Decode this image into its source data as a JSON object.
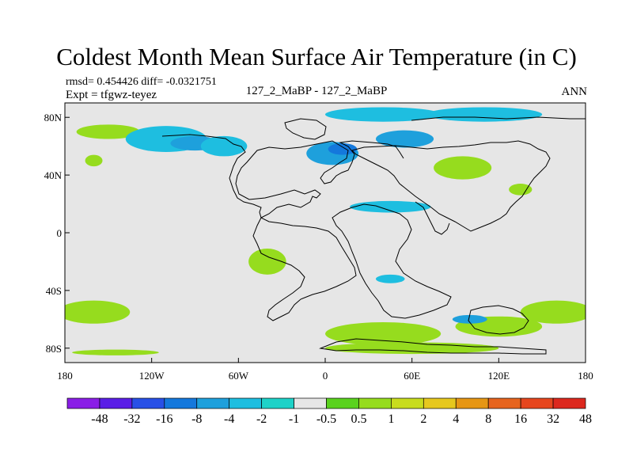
{
  "title": "Coldest Month Mean Surface Air Temperature (in C)",
  "stats": {
    "rmsd_line": "rmsd= 0.454426 diff= -0.0321751",
    "expt_line": "Expt = tfgwz-teyez",
    "comparison": "127_2_MaBP - 127_2_MaBP",
    "season": "ANN"
  },
  "axes": {
    "x_ticks": [
      {
        "value": -180,
        "label": "180"
      },
      {
        "value": -120,
        "label": "120W"
      },
      {
        "value": -60,
        "label": "60W"
      },
      {
        "value": 0,
        "label": "0"
      },
      {
        "value": 60,
        "label": "60E"
      },
      {
        "value": 120,
        "label": "120E"
      },
      {
        "value": 180,
        "label": "180"
      }
    ],
    "y_ticks": [
      {
        "value": 80,
        "label": "80N"
      },
      {
        "value": 40,
        "label": "40N"
      },
      {
        "value": 0,
        "label": "0"
      },
      {
        "value": -40,
        "label": "40S"
      },
      {
        "value": -80,
        "label": "80S"
      }
    ],
    "xlim": [
      -180,
      180
    ],
    "ylim": [
      -90,
      90
    ]
  },
  "colorbar": {
    "colors": [
      "#8a1ee6",
      "#5a1ee6",
      "#2850e6",
      "#1478dc",
      "#1ea0dc",
      "#1ebee0",
      "#1ed2c8",
      "#e6e6e6",
      "#5ad21e",
      "#96dc1e",
      "#c8dc1e",
      "#e6c81e",
      "#e69614",
      "#e6641e",
      "#e6461e",
      "#dc281e"
    ],
    "labels": [
      "-48",
      "-32",
      "-16",
      "-8",
      "-4",
      "-2",
      "-1",
      "-0.5",
      "0.5",
      "1",
      "2",
      "4",
      "8",
      "16",
      "32",
      "48"
    ]
  },
  "chart_data": {
    "type": "heatmap",
    "title": "Coldest Month Mean Surface Air Temperature (in C)",
    "units": "C",
    "levels": [
      -48,
      -32,
      -16,
      -8,
      -4,
      -2,
      -1,
      -0.5,
      0.5,
      1,
      2,
      4,
      8,
      16,
      32,
      48
    ],
    "background_value_range": [
      -0.5,
      0.5
    ],
    "xlim": [
      -180,
      180
    ],
    "ylim": [
      -90,
      90
    ],
    "anomaly_regions": [
      {
        "name": "north-pacific-arctic-green",
        "lon": -150,
        "lat": 70,
        "rx": 22,
        "ry": 5,
        "value": 1
      },
      {
        "name": "north-america-cyan-west",
        "lon": -110,
        "lat": 65,
        "rx": 28,
        "ry": 9,
        "value": -1
      },
      {
        "name": "north-america-cyan-core",
        "lon": -90,
        "lat": 62,
        "rx": 17,
        "ry": 5,
        "value": -2
      },
      {
        "name": "north-america-cyan-east",
        "lon": -70,
        "lat": 60,
        "rx": 16,
        "ry": 7,
        "value": -1
      },
      {
        "name": "north-pacific-green",
        "lon": -160,
        "lat": 50,
        "rx": 6,
        "ry": 4,
        "value": 1
      },
      {
        "name": "arctic-ridge-cyan",
        "lon": 40,
        "lat": 82,
        "rx": 40,
        "ry": 5,
        "value": -1
      },
      {
        "name": "arctic-east-cyan",
        "lon": 110,
        "lat": 82,
        "rx": 40,
        "ry": 5,
        "value": -1
      },
      {
        "name": "europe-cyan",
        "lon": 5,
        "lat": 55,
        "rx": 18,
        "ry": 8,
        "value": -2
      },
      {
        "name": "europe-deep-cyan",
        "lon": 12,
        "lat": 58,
        "rx": 10,
        "ry": 4,
        "value": -4
      },
      {
        "name": "siberia-cyan",
        "lon": 55,
        "lat": 65,
        "rx": 20,
        "ry": 6,
        "value": -2
      },
      {
        "name": "central-asia-green",
        "lon": 95,
        "lat": 45,
        "rx": 20,
        "ry": 8,
        "value": 1
      },
      {
        "name": "east-asia-green",
        "lon": 135,
        "lat": 30,
        "rx": 8,
        "ry": 4,
        "value": 1
      },
      {
        "name": "tethys-cyan",
        "lon": 45,
        "lat": 18,
        "rx": 28,
        "ry": 4,
        "value": -1
      },
      {
        "name": "south-atlantic-green",
        "lon": -40,
        "lat": -20,
        "rx": 13,
        "ry": 9,
        "value": 1
      },
      {
        "name": "south-atlantic-cyan",
        "lon": 45,
        "lat": -32,
        "rx": 10,
        "ry": 3,
        "value": -1
      },
      {
        "name": "southern-ocean-green-west",
        "lon": -160,
        "lat": -55,
        "rx": 25,
        "ry": 8,
        "value": 1
      },
      {
        "name": "southern-ocean-green-east",
        "lon": 160,
        "lat": -55,
        "rx": 25,
        "ry": 8,
        "value": 1
      },
      {
        "name": "antarctic-coast-green-a",
        "lon": 40,
        "lat": -70,
        "rx": 40,
        "ry": 8,
        "value": 1
      },
      {
        "name": "antarctic-coast-green-b",
        "lon": 120,
        "lat": -65,
        "rx": 30,
        "ry": 7,
        "value": 1
      },
      {
        "name": "antarctic-cyan",
        "lon": 100,
        "lat": -60,
        "rx": 12,
        "ry": 3,
        "value": -2
      },
      {
        "name": "antarctica-interior-green",
        "lon": 60,
        "lat": -80,
        "rx": 60,
        "ry": 4,
        "value": 1
      },
      {
        "name": "southern-pacific-green",
        "lon": -145,
        "lat": -83,
        "rx": 30,
        "ry": 2,
        "value": 1
      }
    ]
  }
}
